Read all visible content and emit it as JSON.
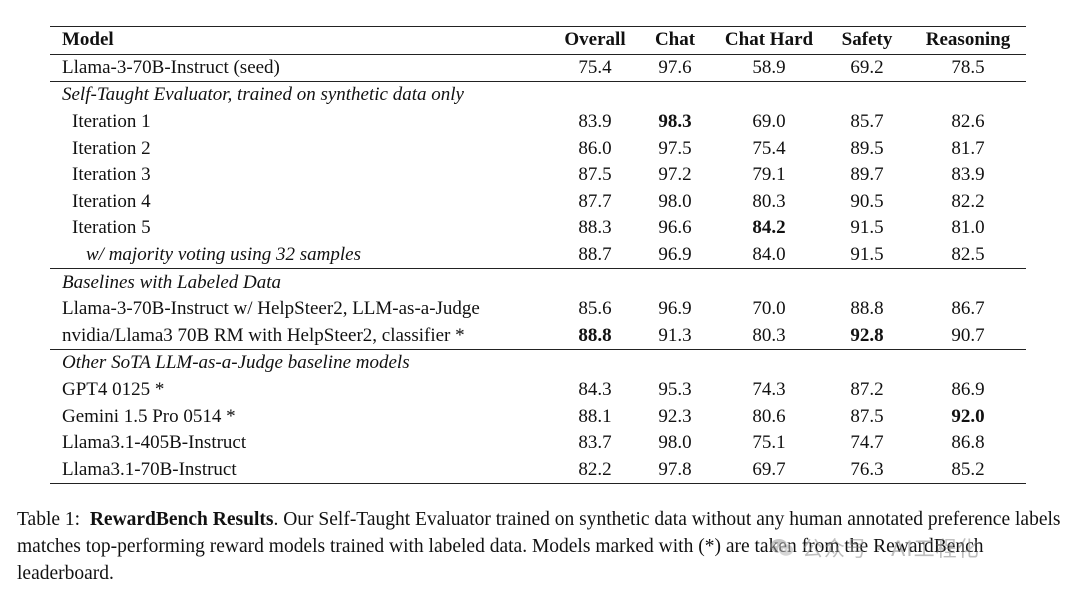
{
  "table": {
    "headers": [
      "Model",
      "Overall",
      "Chat",
      "Chat Hard",
      "Safety",
      "Reasoning"
    ],
    "seed_row": {
      "model": "Llama-3-70B-Instruct (seed)",
      "values": [
        "75.4",
        "97.6",
        "58.9",
        "69.2",
        "78.5"
      ],
      "bold": []
    },
    "sections": [
      {
        "title": "Self-Taught Evaluator, trained on synthetic data only",
        "rows": [
          {
            "model": "Iteration 1",
            "values": [
              "83.9",
              "98.3",
              "69.0",
              "85.7",
              "82.6"
            ],
            "bold": [
              1
            ],
            "indent": 1
          },
          {
            "model": "Iteration 2",
            "values": [
              "86.0",
              "97.5",
              "75.4",
              "89.5",
              "81.7"
            ],
            "bold": [],
            "indent": 1
          },
          {
            "model": "Iteration 3",
            "values": [
              "87.5",
              "97.2",
              "79.1",
              "89.7",
              "83.9"
            ],
            "bold": [],
            "indent": 1
          },
          {
            "model": "Iteration 4",
            "values": [
              "87.7",
              "98.0",
              "80.3",
              "90.5",
              "82.2"
            ],
            "bold": [],
            "indent": 1
          },
          {
            "model": "Iteration 5",
            "values": [
              "88.3",
              "96.6",
              "84.2",
              "91.5",
              "81.0"
            ],
            "bold": [
              2
            ],
            "indent": 1
          },
          {
            "model": "w/ majority voting using 32 samples",
            "values": [
              "88.7",
              "96.9",
              "84.0",
              "91.5",
              "82.5"
            ],
            "bold": [],
            "indent": 2
          }
        ]
      },
      {
        "title": "Baselines with Labeled Data",
        "rows": [
          {
            "model": "Llama-3-70B-Instruct w/ HelpSteer2, LLM-as-a-Judge",
            "values": [
              "85.6",
              "96.9",
              "70.0",
              "88.8",
              "86.7"
            ],
            "bold": [],
            "indent": 0
          },
          {
            "model": "nvidia/Llama3 70B RM with HelpSteer2, classifier *",
            "values": [
              "88.8",
              "91.3",
              "80.3",
              "92.8",
              "90.7"
            ],
            "bold": [
              0,
              3
            ],
            "indent": 0
          }
        ]
      },
      {
        "title": "Other SoTA LLM-as-a-Judge baseline models",
        "rows": [
          {
            "model": "GPT4 0125 *",
            "values": [
              "84.3",
              "95.3",
              "74.3",
              "87.2",
              "86.9"
            ],
            "bold": [],
            "indent": 0
          },
          {
            "model": "Gemini 1.5 Pro 0514 *",
            "values": [
              "88.1",
              "92.3",
              "80.6",
              "87.5",
              "92.0"
            ],
            "bold": [
              4
            ],
            "indent": 0
          },
          {
            "model": "Llama3.1-405B-Instruct",
            "values": [
              "83.7",
              "98.0",
              "75.1",
              "74.7",
              "86.8"
            ],
            "bold": [],
            "indent": 0
          },
          {
            "model": "Llama3.1-70B-Instruct",
            "values": [
              "82.2",
              "97.8",
              "69.7",
              "76.3",
              "85.2"
            ],
            "bold": [],
            "indent": 0
          }
        ]
      }
    ]
  },
  "caption": {
    "label": "Table 1:",
    "bold_title": "RewardBench Results",
    "text": ". Our Self-Taught Evaluator trained on synthetic data without any human annotated preference labels matches top-performing reward models trained with labeled data. Models marked with (*) are taken from the RewardBench leaderboard."
  },
  "watermark": {
    "icon": "wechat-icon",
    "text": "公众号 · AI工程化"
  }
}
